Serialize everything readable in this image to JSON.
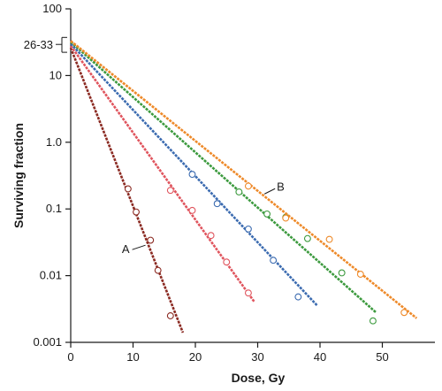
{
  "chart_data": {
    "type": "line",
    "title": "",
    "xlabel": "Dose, Gy",
    "ylabel": "Surviving fraction",
    "x_scale": "linear",
    "y_scale": "log",
    "xlim": [
      0,
      60
    ],
    "ylim": [
      0.001,
      100
    ],
    "x_ticks": [
      "0",
      "10",
      "20",
      "30",
      "40",
      "50"
    ],
    "x_tick_values": [
      0,
      10,
      20,
      30,
      40,
      50
    ],
    "y_ticks": [
      "0.001",
      "0.01",
      "0.1",
      "1.0",
      "10",
      "100"
    ],
    "y_tick_values": [
      0.001,
      0.01,
      0.1,
      1,
      10,
      100
    ],
    "y_bracket": {
      "label": "26-33",
      "low": 26,
      "high": 33
    },
    "grid": false,
    "annotations": [
      {
        "text": "A",
        "series": 0
      },
      {
        "text": "B",
        "series": 4
      }
    ],
    "series": [
      {
        "color": "#8b2a22",
        "line": {
          "x_start": 0,
          "y_start": 26,
          "x_end": 18,
          "y_end": 0.0014
        },
        "points": [
          [
            9.2,
            0.2
          ],
          [
            10.5,
            0.09
          ],
          [
            12.8,
            0.034
          ],
          [
            14,
            0.012
          ],
          [
            16,
            0.0025
          ]
        ]
      },
      {
        "color": "#e0555e",
        "line": {
          "x_start": 0,
          "y_start": 28,
          "x_end": 29.5,
          "y_end": 0.004
        },
        "points": [
          [
            16,
            0.19
          ],
          [
            19.5,
            0.095
          ],
          [
            22.5,
            0.04
          ],
          [
            25,
            0.016
          ],
          [
            28.5,
            0.0055
          ]
        ]
      },
      {
        "color": "#3b6bb0",
        "line": {
          "x_start": 0,
          "y_start": 30,
          "x_end": 39.5,
          "y_end": 0.0036
        },
        "points": [
          [
            19.5,
            0.33
          ],
          [
            23.5,
            0.12
          ],
          [
            28.5,
            0.05
          ],
          [
            32.5,
            0.017
          ],
          [
            36.5,
            0.0048
          ]
        ]
      },
      {
        "color": "#3c9a3e",
        "line": {
          "x_start": 0,
          "y_start": 32,
          "x_end": 49,
          "y_end": 0.0028
        },
        "points": [
          [
            27,
            0.18
          ],
          [
            31.5,
            0.084
          ],
          [
            34.5,
            0.075
          ],
          [
            38,
            0.036
          ],
          [
            43.5,
            0.011
          ],
          [
            48.5,
            0.0021
          ]
        ]
      },
      {
        "color": "#ee8a2a",
        "line": {
          "x_start": 0,
          "y_start": 33,
          "x_end": 55.5,
          "y_end": 0.0023
        },
        "points": [
          [
            28.5,
            0.22
          ],
          [
            34.5,
            0.073
          ],
          [
            41.5,
            0.035
          ],
          [
            46.5,
            0.0105
          ],
          [
            53.5,
            0.0028
          ]
        ]
      }
    ]
  }
}
